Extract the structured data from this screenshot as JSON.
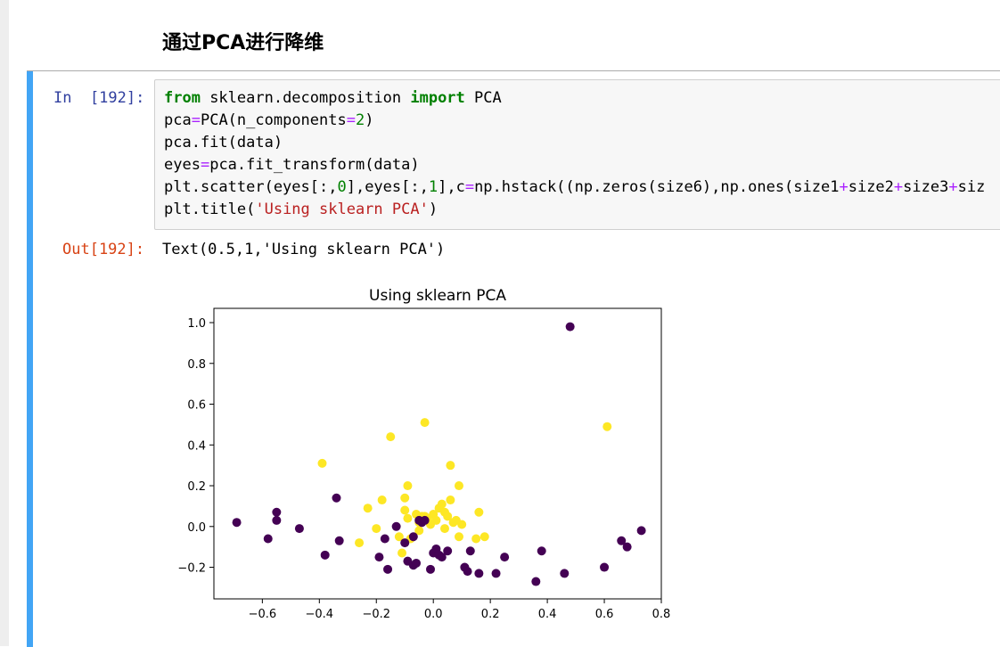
{
  "heading": "通过PCA进行降维",
  "cell": {
    "in_prompt": "In  [192]:",
    "out_prompt": "Out[192]:",
    "code_lines": [
      [
        {
          "t": "from",
          "c": "kw"
        },
        {
          "t": " sklearn.decomposition ",
          "c": ""
        },
        {
          "t": "import",
          "c": "kw"
        },
        {
          "t": " PCA",
          "c": ""
        }
      ],
      [
        {
          "t": "pca",
          "c": ""
        },
        {
          "t": "=",
          "c": "op"
        },
        {
          "t": "PCA(n_components",
          "c": ""
        },
        {
          "t": "=",
          "c": "op"
        },
        {
          "t": "2",
          "c": "num"
        },
        {
          "t": ")",
          "c": ""
        }
      ],
      [
        {
          "t": "pca.fit(data)",
          "c": ""
        }
      ],
      [
        {
          "t": "eyes",
          "c": ""
        },
        {
          "t": "=",
          "c": "op"
        },
        {
          "t": "pca.fit_transform(data)",
          "c": ""
        }
      ],
      [
        {
          "t": "plt.scatter(eyes[:,",
          "c": ""
        },
        {
          "t": "0",
          "c": "num"
        },
        {
          "t": "],eyes[:,",
          "c": ""
        },
        {
          "t": "1",
          "c": "num"
        },
        {
          "t": "],c",
          "c": ""
        },
        {
          "t": "=",
          "c": "op"
        },
        {
          "t": "np.hstack((np.zeros(size6),np.ones(size1",
          "c": ""
        },
        {
          "t": "+",
          "c": "op"
        },
        {
          "t": "size2",
          "c": ""
        },
        {
          "t": "+",
          "c": "op"
        },
        {
          "t": "size3",
          "c": ""
        },
        {
          "t": "+",
          "c": "op"
        },
        {
          "t": "siz",
          "c": ""
        }
      ],
      [
        {
          "t": "plt.title(",
          "c": ""
        },
        {
          "t": "'Using sklearn PCA'",
          "c": "str"
        },
        {
          "t": ")",
          "c": ""
        }
      ]
    ],
    "output_text": "Text(0.5,1,'Using sklearn PCA')"
  },
  "chart_data": {
    "type": "scatter",
    "title": "Using sklearn PCA",
    "xlabel": "",
    "ylabel": "",
    "xlim": [
      -0.77,
      0.8
    ],
    "ylim": [
      -0.355,
      1.07
    ],
    "xticks": [
      "−0.6",
      "−0.4",
      "−0.2",
      "0.0",
      "0.2",
      "0.4",
      "0.6",
      "0.8"
    ],
    "yticks": [
      "−0.2",
      "0.0",
      "0.2",
      "0.4",
      "0.6",
      "0.8",
      "1.0"
    ],
    "xtick_values": [
      -0.6,
      -0.4,
      -0.2,
      0.0,
      0.2,
      0.4,
      0.6,
      0.8
    ],
    "ytick_values": [
      -0.2,
      0.0,
      0.2,
      0.4,
      0.6,
      0.8,
      1.0
    ],
    "series": [
      {
        "color": "#440154",
        "points": [
          [
            -0.69,
            0.02
          ],
          [
            -0.58,
            -0.06
          ],
          [
            -0.55,
            0.07
          ],
          [
            -0.55,
            0.03
          ],
          [
            -0.47,
            -0.01
          ],
          [
            -0.38,
            -0.14
          ],
          [
            -0.34,
            0.14
          ],
          [
            -0.33,
            -0.07
          ],
          [
            -0.19,
            -0.15
          ],
          [
            -0.17,
            -0.06
          ],
          [
            -0.16,
            -0.21
          ],
          [
            -0.13,
            0.0
          ],
          [
            -0.1,
            -0.08
          ],
          [
            -0.09,
            -0.17
          ],
          [
            -0.07,
            -0.19
          ],
          [
            -0.06,
            -0.18
          ],
          [
            -0.07,
            -0.05
          ],
          [
            -0.05,
            0.03
          ],
          [
            -0.04,
            0.02
          ],
          [
            -0.03,
            0.03
          ],
          [
            -0.01,
            -0.21
          ],
          [
            0.0,
            -0.13
          ],
          [
            0.01,
            -0.11
          ],
          [
            0.02,
            -0.14
          ],
          [
            0.03,
            -0.15
          ],
          [
            0.05,
            -0.12
          ],
          [
            0.11,
            -0.2
          ],
          [
            0.12,
            -0.22
          ],
          [
            0.13,
            -0.12
          ],
          [
            0.16,
            -0.23
          ],
          [
            0.22,
            -0.23
          ],
          [
            0.25,
            -0.15
          ],
          [
            0.36,
            -0.27
          ],
          [
            0.38,
            -0.12
          ],
          [
            0.46,
            -0.23
          ],
          [
            0.48,
            0.98
          ],
          [
            0.6,
            -0.2
          ],
          [
            0.66,
            -0.07
          ],
          [
            0.68,
            -0.1
          ],
          [
            0.73,
            -0.02
          ]
        ]
      },
      {
        "color": "#fde725",
        "points": [
          [
            -0.39,
            0.31
          ],
          [
            -0.26,
            -0.08
          ],
          [
            -0.23,
            0.09
          ],
          [
            -0.2,
            -0.01
          ],
          [
            -0.18,
            0.13
          ],
          [
            -0.15,
            0.44
          ],
          [
            -0.12,
            -0.05
          ],
          [
            -0.11,
            -0.13
          ],
          [
            -0.1,
            0.08
          ],
          [
            -0.1,
            0.14
          ],
          [
            -0.09,
            0.2
          ],
          [
            -0.09,
            0.04
          ],
          [
            -0.08,
            -0.06
          ],
          [
            -0.06,
            0.06
          ],
          [
            -0.05,
            0.02
          ],
          [
            -0.05,
            -0.02
          ],
          [
            -0.04,
            0.05
          ],
          [
            -0.03,
            0.05
          ],
          [
            -0.03,
            0.51
          ],
          [
            -0.02,
            0.04
          ],
          [
            -0.01,
            0.01
          ],
          [
            0.0,
            0.06
          ],
          [
            0.01,
            0.03
          ],
          [
            0.02,
            0.09
          ],
          [
            0.03,
            0.11
          ],
          [
            0.04,
            0.07
          ],
          [
            0.04,
            -0.01
          ],
          [
            0.05,
            0.05
          ],
          [
            0.06,
            0.13
          ],
          [
            0.06,
            0.3
          ],
          [
            0.07,
            0.02
          ],
          [
            0.08,
            0.03
          ],
          [
            0.09,
            0.2
          ],
          [
            0.09,
            -0.05
          ],
          [
            0.1,
            0.01
          ],
          [
            0.15,
            -0.06
          ],
          [
            0.16,
            0.07
          ],
          [
            0.18,
            -0.05
          ],
          [
            0.61,
            0.49
          ]
        ]
      }
    ]
  }
}
